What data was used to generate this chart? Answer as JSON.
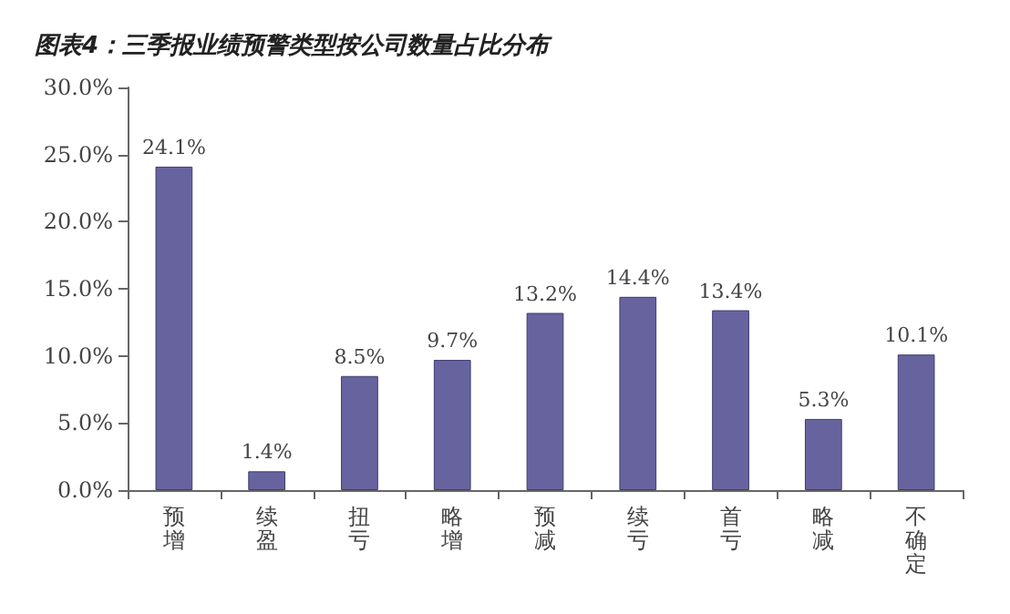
{
  "chart_data": {
    "type": "bar",
    "title": "图表4：三季报业绩预警类型按公司数量占比分布",
    "categories": [
      "预增",
      "续盈",
      "扭亏",
      "略增",
      "预减",
      "续亏",
      "首亏",
      "略减",
      "不确定"
    ],
    "values": [
      24.1,
      1.4,
      8.5,
      9.7,
      13.2,
      14.4,
      13.4,
      5.3,
      10.1
    ],
    "value_labels": [
      "24.1%",
      "1.4%",
      "8.5%",
      "9.7%",
      "13.2%",
      "14.4%",
      "13.4%",
      "5.3%",
      "10.1%"
    ],
    "color": "#67639e",
    "ylim": [
      0,
      30
    ],
    "yticks": [
      {
        "value": 0,
        "label": "0.0%"
      },
      {
        "value": 5,
        "label": "5.0%"
      },
      {
        "value": 10,
        "label": "10.0%"
      },
      {
        "value": 15,
        "label": "15.0%"
      },
      {
        "value": 20,
        "label": "20.0%"
      },
      {
        "value": 25,
        "label": "25.0%"
      },
      {
        "value": 30,
        "label": "30.0%"
      }
    ],
    "grid": false
  }
}
